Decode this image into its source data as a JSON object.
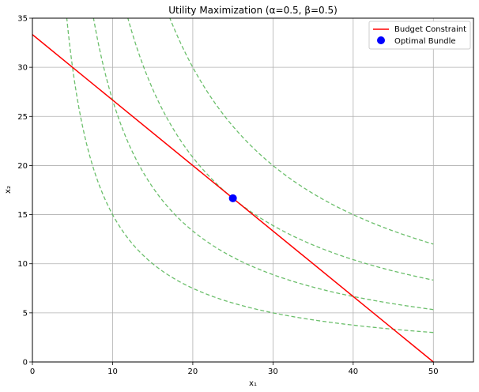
{
  "chart_data": {
    "type": "line",
    "title": "Utility Maximization (α=0.5, β=0.5)",
    "xlabel": "x₁",
    "ylabel": "x₂",
    "xlim": [
      0,
      55
    ],
    "ylim": [
      0,
      35
    ],
    "xticks": [
      0,
      10,
      20,
      30,
      40,
      50
    ],
    "yticks": [
      0,
      5,
      10,
      15,
      20,
      25,
      30,
      35
    ],
    "grid": true,
    "legend_position": "top-right",
    "budget_constraint": {
      "name": "Budget Constraint",
      "color": "#ff0000",
      "x": [
        0,
        50
      ],
      "y": [
        33.33,
        0
      ]
    },
    "optimal_bundle": {
      "name": "Optimal Bundle",
      "color": "#0000ff",
      "x": 25,
      "y": 16.67
    },
    "indifference_curves": {
      "color": "#5cb85c",
      "style": "dashed",
      "x_max": 50,
      "utility_levels": [
        {
          "u2": 150
        },
        {
          "u2": 266.7
        },
        {
          "u2": 416.7
        },
        {
          "u2": 600
        }
      ]
    }
  }
}
